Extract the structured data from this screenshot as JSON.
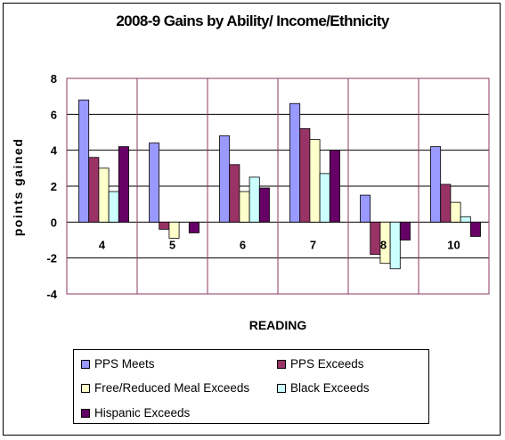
{
  "chart_data": {
    "type": "bar",
    "title": "2008-9  Gains by Ability/ Income/Ethnicity",
    "xlabel": "READING",
    "ylabel": "points gained",
    "ylim": [
      -4,
      8
    ],
    "yticks": [
      "8",
      "6",
      "4",
      "2",
      "0",
      "-2",
      "-4"
    ],
    "categories": [
      "4",
      "5",
      "6",
      "7",
      "8",
      "10"
    ],
    "grid": true,
    "legend_position": "bottom",
    "series": [
      {
        "name": "PPS Meets",
        "color": "#9999ff",
        "values": [
          6.8,
          4.4,
          4.8,
          6.6,
          1.5,
          4.2
        ]
      },
      {
        "name": "PPS Exceeds",
        "color": "#993366",
        "values": [
          3.6,
          -0.4,
          3.2,
          5.2,
          -1.8,
          2.1
        ]
      },
      {
        "name": "Free/Reduced Meal Exceeds",
        "color": "#ffffcc",
        "values": [
          3.0,
          -0.9,
          1.7,
          4.6,
          -2.3,
          1.1
        ]
      },
      {
        "name": "Black Exceeds",
        "color": "#ccffff",
        "values": [
          1.7,
          0.0,
          2.5,
          2.7,
          -2.6,
          0.3
        ]
      },
      {
        "name": "Hispanic Exceeds",
        "color": "#660066",
        "values": [
          4.2,
          -0.6,
          1.9,
          4.0,
          -1.0,
          -0.8
        ]
      }
    ]
  }
}
